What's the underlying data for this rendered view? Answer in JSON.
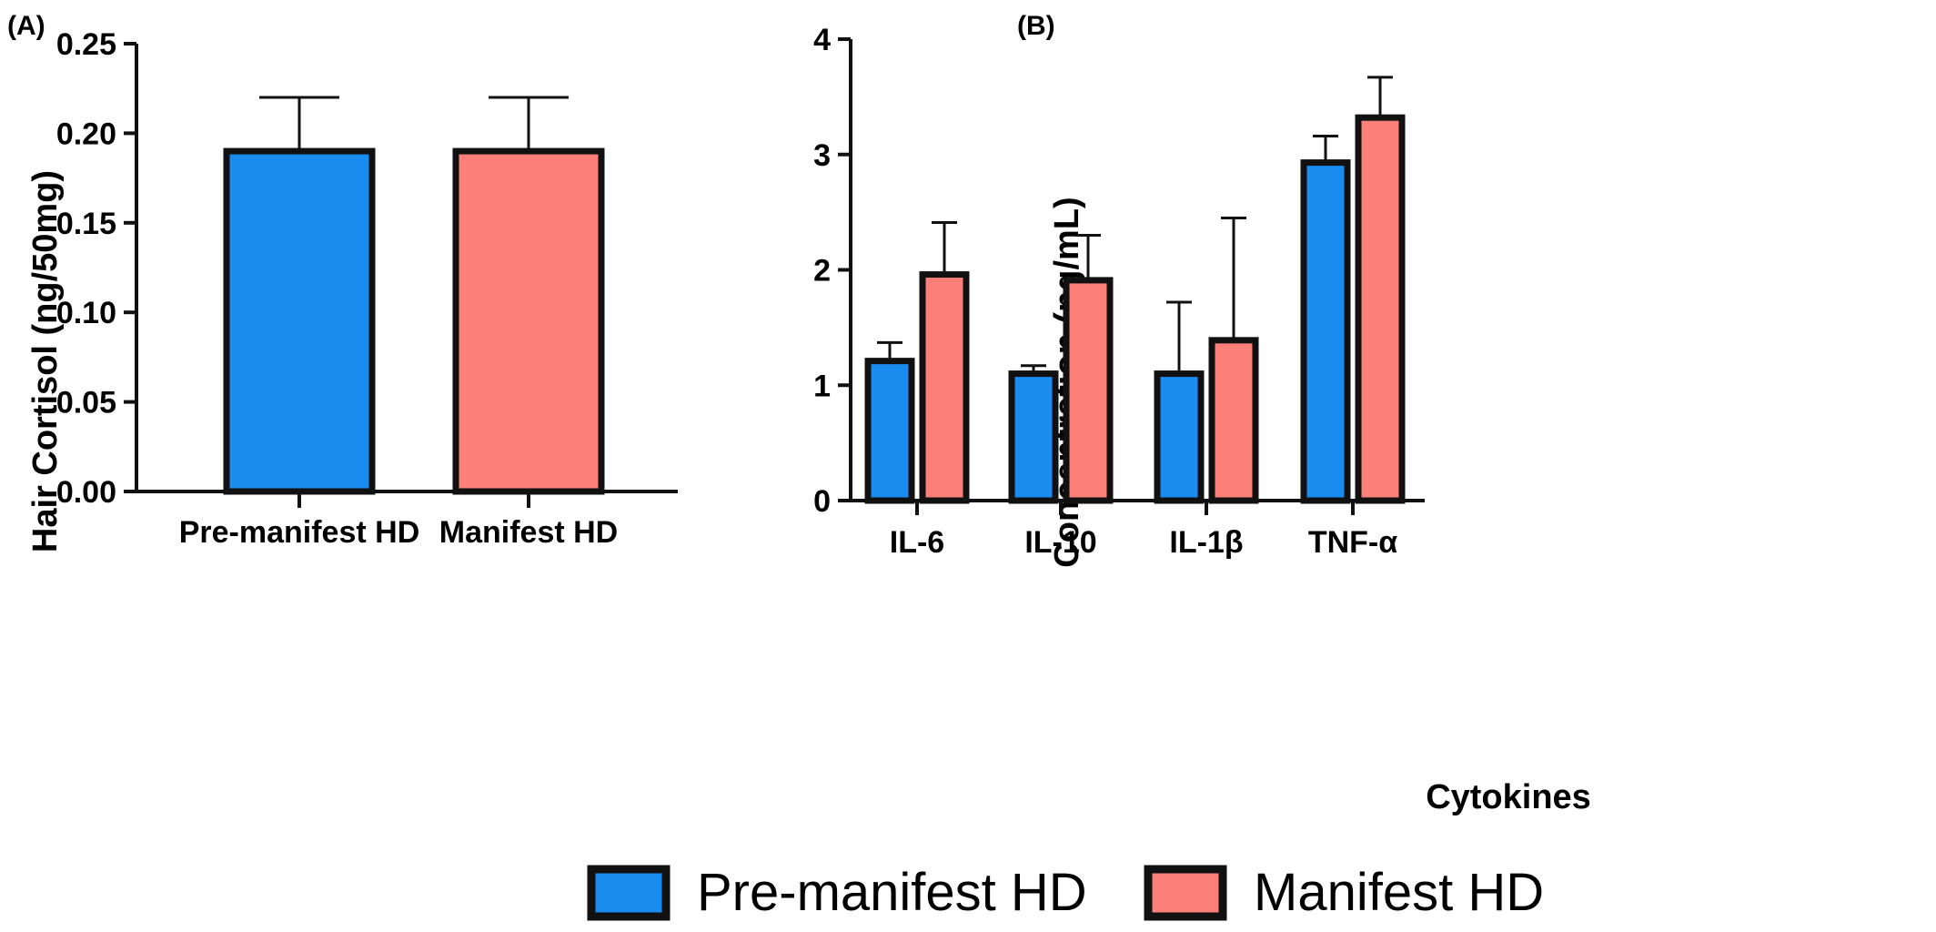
{
  "colors": {
    "pre_manifest": "#1a8cf0",
    "manifest": "#fc8079",
    "stroke": "#111111"
  },
  "chart_data": [
    {
      "panel_label": "(A)",
      "type": "bar",
      "categories": [
        "Pre-manifest HD",
        "Manifest HD"
      ],
      "values": [
        0.19,
        0.19
      ],
      "error_plus": [
        0.03,
        0.03
      ],
      "xlabel": "",
      "ylabel": "Hair Cortisol (ng/50mg)",
      "ylim": [
        0,
        0.25
      ],
      "yticks": [
        "0.00",
        "0.05",
        "0.10",
        "0.15",
        "0.20",
        "0.25"
      ],
      "grid": false
    },
    {
      "panel_label": "(B)",
      "type": "bar",
      "categories": [
        "IL-6",
        "IL-10",
        "IL-1β",
        "TNF-α"
      ],
      "series": [
        {
          "name": "Pre-manifest HD",
          "values": [
            1.21,
            1.1,
            1.1,
            2.93
          ],
          "error_plus": [
            0.16,
            0.07,
            0.62,
            0.23
          ]
        },
        {
          "name": "Manifest HD",
          "values": [
            1.96,
            1.91,
            1.39,
            3.32
          ],
          "error_plus": [
            0.45,
            0.39,
            1.06,
            0.35
          ]
        }
      ],
      "xlabel": "Cytokines",
      "ylabel": "Concentration (pg/mL)",
      "ylim": [
        0,
        4
      ],
      "yticks": [
        "0",
        "1",
        "2",
        "3",
        "4"
      ],
      "grid": false
    }
  ],
  "legend": {
    "placement": "bottom-center",
    "items": [
      {
        "label": "Pre-manifest HD",
        "color": "#1a8cf0"
      },
      {
        "label": "Manifest HD",
        "color": "#fc8079"
      }
    ]
  }
}
